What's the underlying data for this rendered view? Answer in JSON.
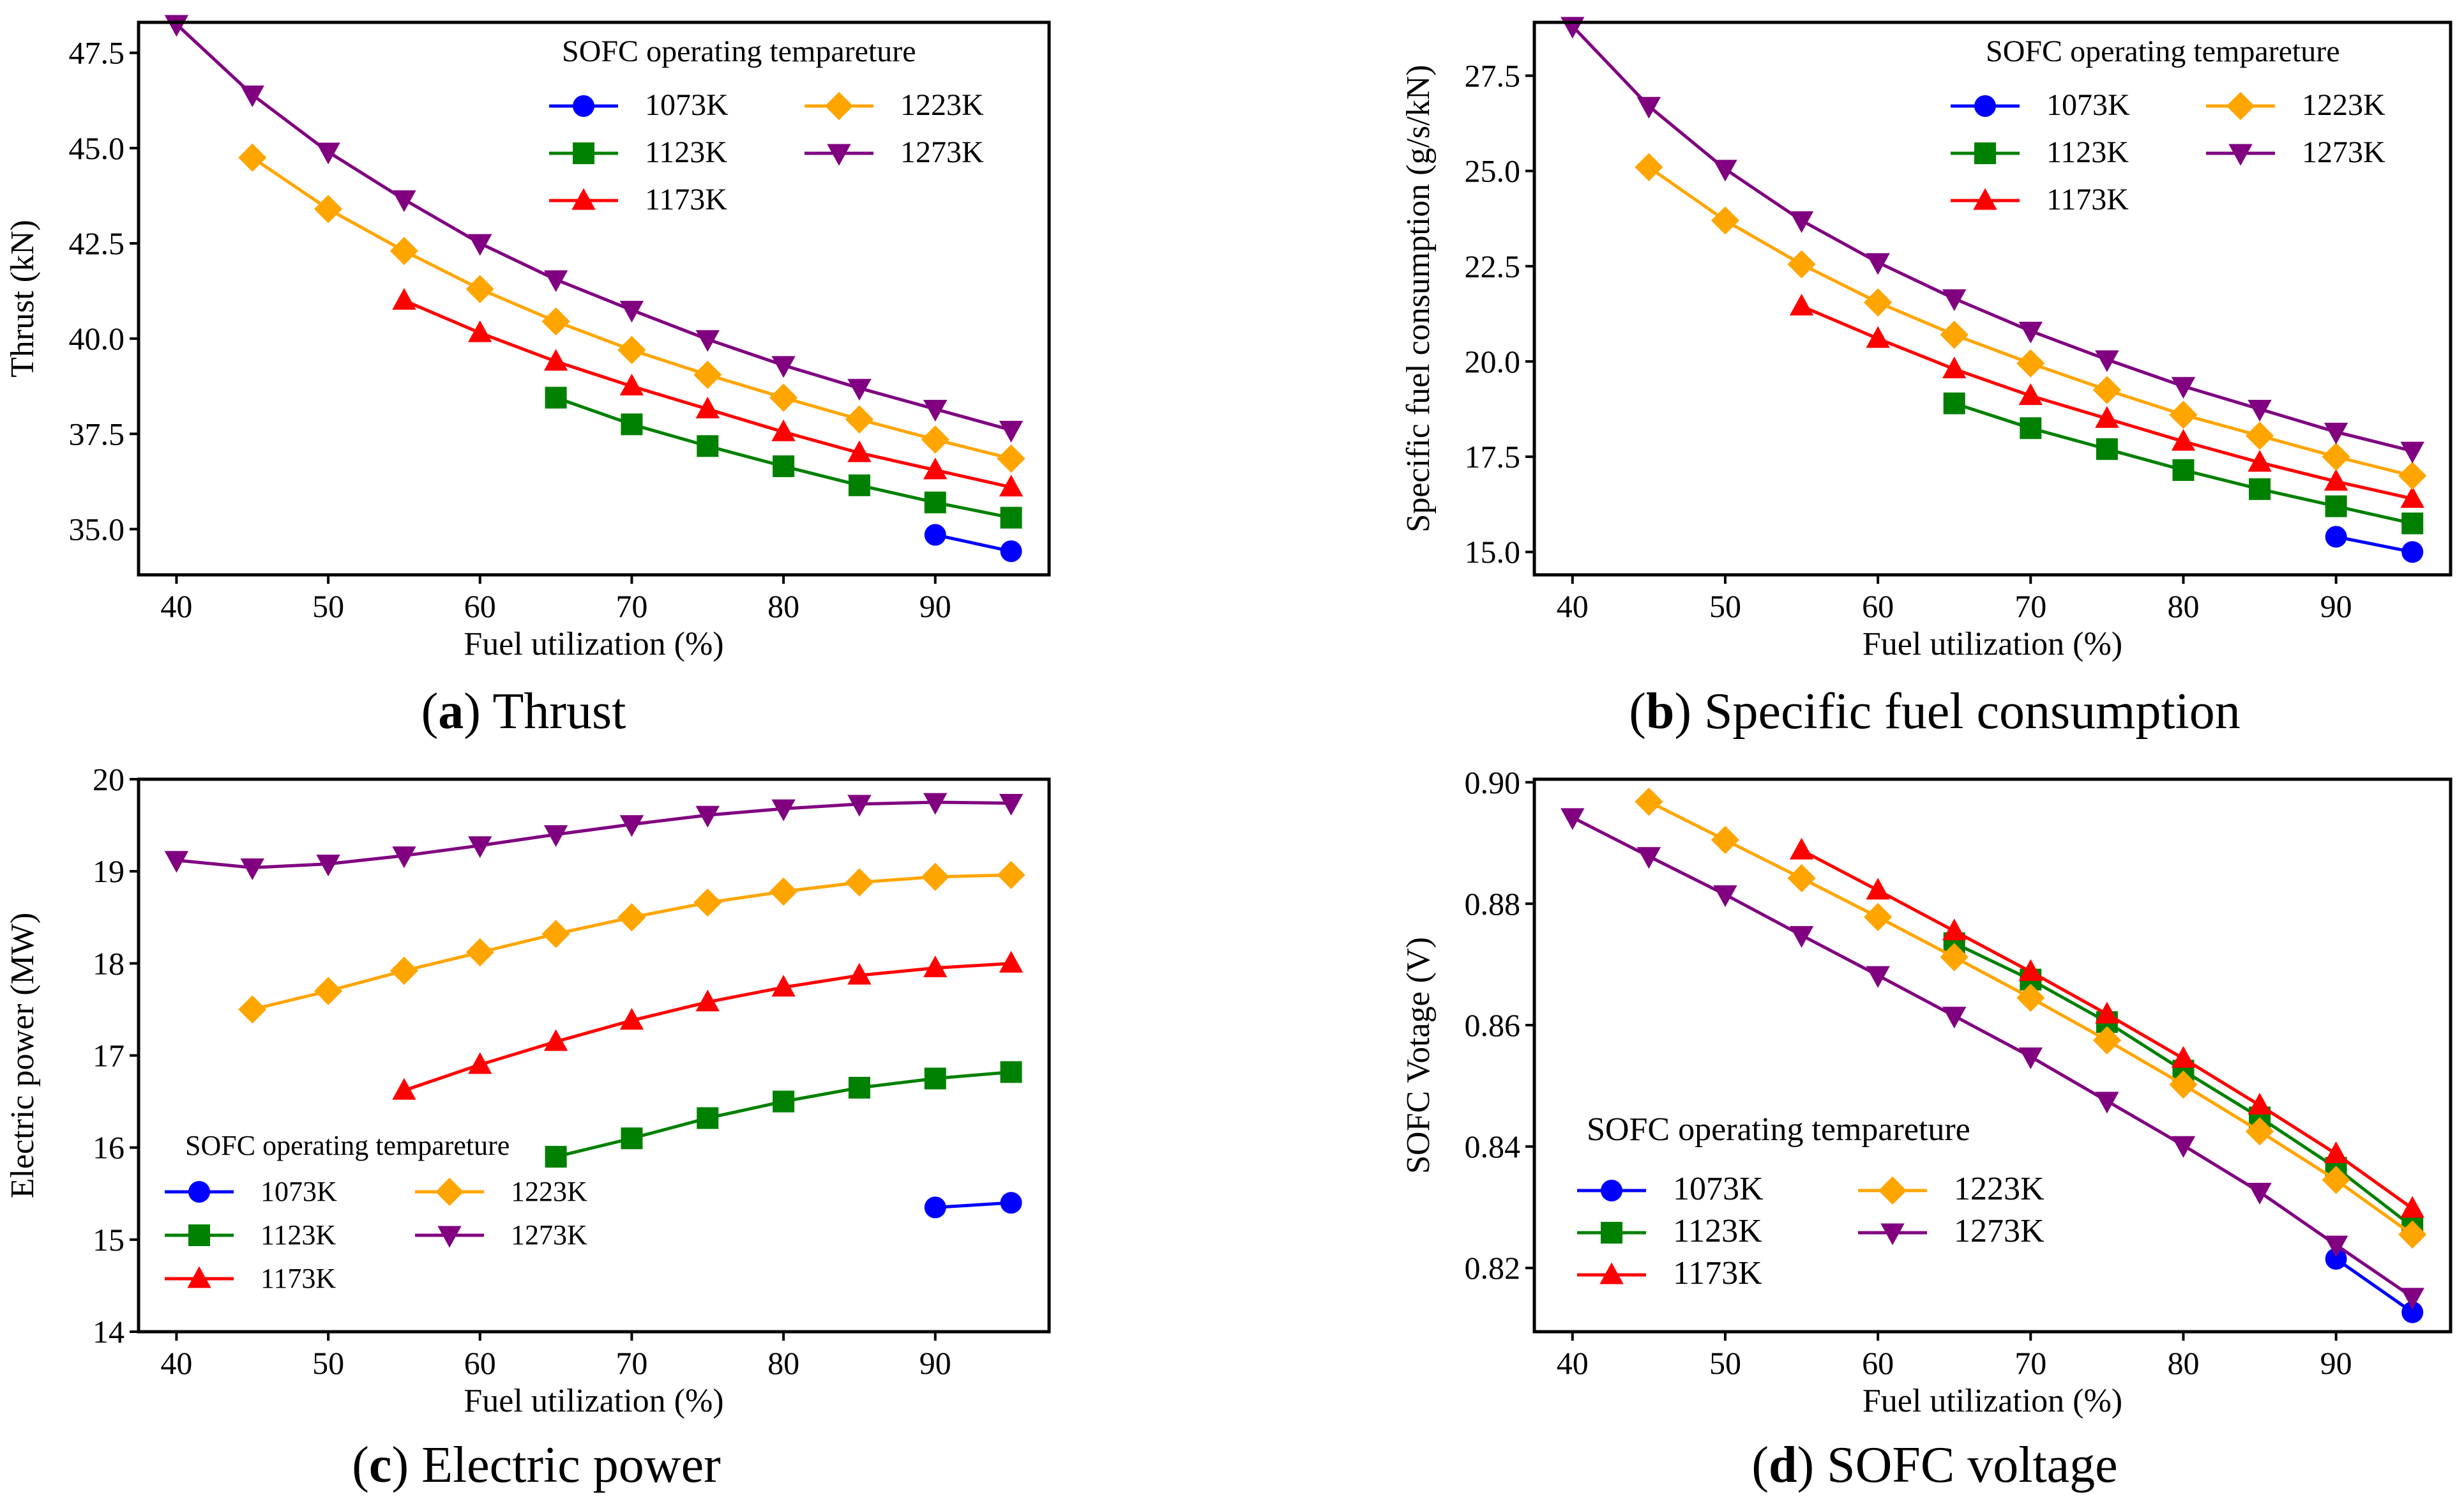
{
  "figure": {
    "panels": [
      {
        "letter": "a",
        "caption": "Thrust"
      },
      {
        "letter": "b",
        "caption": "Specific fuel consumption"
      },
      {
        "letter": "c",
        "caption": "Electric power"
      },
      {
        "letter": "d",
        "caption": "SOFC voltage"
      }
    ]
  },
  "colors": {
    "1073K": "#0000ff",
    "1123K": "#008000",
    "1173K": "#ff0000",
    "1223K": "#ffa500",
    "1273K": "#800080"
  },
  "chart_data": [
    {
      "type": "line",
      "title": "Thrust",
      "xlabel": "Fuel utilization (%)",
      "ylabel": "Thrust (kN)",
      "xlim": [
        37.5,
        97.5
      ],
      "ylim": [
        33.8,
        48.3
      ],
      "xticks": [
        40,
        50,
        60,
        70,
        80,
        90
      ],
      "xtick_labels": [
        "40",
        "50",
        "60",
        "70",
        "80",
        "90"
      ],
      "yticks": [
        35.0,
        37.5,
        40.0,
        42.5,
        45.0,
        47.5
      ],
      "ytick_labels": [
        "35.0",
        "37.5",
        "40.0",
        "42.5",
        "45.0",
        "47.5"
      ],
      "legend": {
        "title": "SOFC operating tempareture",
        "position": "top-right",
        "columns": [
          [
            "1073K",
            "1123K",
            "1173K"
          ],
          [
            "1223K",
            "1273K"
          ]
        ]
      },
      "series": [
        {
          "name": "1073K",
          "marker": "circle",
          "x": [
            90,
            95
          ],
          "values": [
            34.85,
            34.42
          ]
        },
        {
          "name": "1123K",
          "marker": "square",
          "x": [
            65,
            70,
            75,
            80,
            85,
            90,
            95
          ],
          "values": [
            38.45,
            37.75,
            37.18,
            36.65,
            36.15,
            35.7,
            35.3
          ]
        },
        {
          "name": "1173K",
          "marker": "triangle-up",
          "x": [
            55,
            60,
            65,
            70,
            75,
            80,
            85,
            90,
            95
          ],
          "values": [
            41.0,
            40.15,
            39.4,
            38.75,
            38.15,
            37.55,
            37.0,
            36.55,
            36.1
          ]
        },
        {
          "name": "1223K",
          "marker": "diamond",
          "x": [
            45,
            50,
            55,
            60,
            65,
            70,
            75,
            80,
            85,
            90,
            95
          ],
          "values": [
            44.75,
            43.4,
            42.3,
            41.3,
            40.45,
            39.7,
            39.05,
            38.45,
            37.88,
            37.35,
            36.85
          ]
        },
        {
          "name": "1273K",
          "marker": "triangle-down",
          "x": [
            40,
            45,
            50,
            55,
            60,
            65,
            70,
            75,
            80,
            85,
            90,
            95
          ],
          "values": [
            48.25,
            46.4,
            44.9,
            43.65,
            42.5,
            41.55,
            40.75,
            39.98,
            39.3,
            38.7,
            38.15,
            37.6
          ]
        }
      ]
    },
    {
      "type": "line",
      "title": "Specific fuel consumption",
      "xlabel": "Fuel utilization (%)",
      "ylabel": "Specific fuel consumption (g/s/kN)",
      "xlim": [
        37.5,
        97.5
      ],
      "ylim": [
        14.4,
        28.9
      ],
      "xticks": [
        40,
        50,
        60,
        70,
        80,
        90
      ],
      "xtick_labels": [
        "40",
        "50",
        "60",
        "70",
        "80",
        "90"
      ],
      "yticks": [
        15.0,
        17.5,
        20.0,
        22.5,
        25.0,
        27.5
      ],
      "ytick_labels": [
        "15.0",
        "17.5",
        "20.0",
        "22.5",
        "25.0",
        "27.5"
      ],
      "legend": {
        "title": "SOFC operating tempareture",
        "position": "top-right",
        "columns": [
          [
            "1073K",
            "1123K",
            "1173K"
          ],
          [
            "1223K",
            "1273K"
          ]
        ]
      },
      "series": [
        {
          "name": "1073K",
          "marker": "circle",
          "x": [
            90,
            95
          ],
          "values": [
            15.4,
            15.0
          ]
        },
        {
          "name": "1123K",
          "marker": "square",
          "x": [
            65,
            70,
            75,
            80,
            85,
            90,
            95
          ],
          "values": [
            18.9,
            18.25,
            17.7,
            17.15,
            16.65,
            16.2,
            15.75
          ]
        },
        {
          "name": "1173K",
          "marker": "triangle-up",
          "x": [
            55,
            60,
            65,
            70,
            75,
            80,
            85,
            90,
            95
          ],
          "values": [
            21.45,
            20.6,
            19.8,
            19.1,
            18.5,
            17.9,
            17.35,
            16.85,
            16.4
          ]
        },
        {
          "name": "1223K",
          "marker": "diamond",
          "x": [
            45,
            50,
            55,
            60,
            65,
            70,
            75,
            80,
            85,
            90,
            95
          ],
          "values": [
            25.1,
            23.7,
            22.55,
            21.55,
            20.7,
            19.95,
            19.25,
            18.6,
            18.05,
            17.5,
            17.0
          ]
        },
        {
          "name": "1273K",
          "marker": "triangle-down",
          "x": [
            40,
            45,
            50,
            55,
            60,
            65,
            70,
            75,
            80,
            85,
            90,
            95
          ],
          "values": [
            28.8,
            26.7,
            25.05,
            23.7,
            22.6,
            21.65,
            20.8,
            20.05,
            19.35,
            18.75,
            18.15,
            17.65
          ]
        }
      ]
    },
    {
      "type": "line",
      "title": "Electric power",
      "xlabel": "Fuel utilization (%)",
      "ylabel": "Electric power (MW)",
      "xlim": [
        37.5,
        97.5
      ],
      "ylim": [
        14.0,
        20.0
      ],
      "xticks": [
        40,
        50,
        60,
        70,
        80,
        90
      ],
      "xtick_labels": [
        "40",
        "50",
        "60",
        "70",
        "80",
        "90"
      ],
      "yticks": [
        14,
        15,
        16,
        17,
        18,
        19,
        20
      ],
      "ytick_labels": [
        "14",
        "15",
        "16",
        "17",
        "18",
        "19",
        "20"
      ],
      "legend": {
        "title": "SOFC operating tempareture",
        "position": "bottom-left",
        "columns": [
          [
            "1073K",
            "1123K",
            "1173K"
          ],
          [
            "1223K",
            "1273K"
          ]
        ]
      },
      "series": [
        {
          "name": "1073K",
          "marker": "circle",
          "x": [
            90,
            95
          ],
          "values": [
            15.35,
            15.4
          ]
        },
        {
          "name": "1123K",
          "marker": "square",
          "x": [
            65,
            70,
            75,
            80,
            85,
            90,
            95
          ],
          "values": [
            15.9,
            16.1,
            16.32,
            16.5,
            16.65,
            16.75,
            16.82
          ]
        },
        {
          "name": "1173K",
          "marker": "triangle-up",
          "x": [
            55,
            60,
            65,
            70,
            75,
            80,
            85,
            90,
            95
          ],
          "values": [
            16.62,
            16.9,
            17.15,
            17.38,
            17.58,
            17.74,
            17.87,
            17.95,
            18.0
          ]
        },
        {
          "name": "1223K",
          "marker": "diamond",
          "x": [
            45,
            50,
            55,
            60,
            65,
            70,
            75,
            80,
            85,
            90,
            95
          ],
          "values": [
            17.5,
            17.7,
            17.92,
            18.12,
            18.32,
            18.5,
            18.66,
            18.78,
            18.88,
            18.94,
            18.96
          ]
        },
        {
          "name": "1273K",
          "marker": "triangle-down",
          "x": [
            40,
            45,
            50,
            55,
            60,
            65,
            70,
            75,
            80,
            85,
            90,
            95
          ],
          "values": [
            19.12,
            19.04,
            19.08,
            19.17,
            19.28,
            19.4,
            19.51,
            19.61,
            19.68,
            19.73,
            19.75,
            19.74
          ]
        }
      ]
    },
    {
      "type": "line",
      "title": "SOFC voltage",
      "xlabel": "Fuel utilization (%)",
      "ylabel": "SOFC Votage (V)",
      "xlim": [
        37.5,
        97.5
      ],
      "ylim": [
        0.8095,
        0.9005
      ],
      "xticks": [
        40,
        50,
        60,
        70,
        80,
        90
      ],
      "xtick_labels": [
        "40",
        "50",
        "60",
        "70",
        "80",
        "90"
      ],
      "yticks": [
        0.82,
        0.84,
        0.86,
        0.88,
        0.9
      ],
      "ytick_labels": [
        "0.82",
        "0.84",
        "0.86",
        "0.88",
        "0.90"
      ],
      "legend": {
        "title": "SOFC operating tempareture",
        "position": "bottom-left",
        "columns": [
          [
            "1073K",
            "1123K",
            "1173K"
          ],
          [
            "1223K",
            "1273K"
          ]
        ]
      },
      "series": [
        {
          "name": "1073K",
          "marker": "circle",
          "x": [
            90,
            95
          ],
          "values": [
            0.8215,
            0.8127
          ]
        },
        {
          "name": "1123K",
          "marker": "square",
          "x": [
            65,
            70,
            75,
            80,
            85,
            90,
            95
          ],
          "values": [
            0.8735,
            0.8675,
            0.8605,
            0.8525,
            0.8448,
            0.8365,
            0.8268
          ]
        },
        {
          "name": "1173K",
          "marker": "triangle-up",
          "x": [
            55,
            60,
            65,
            70,
            75,
            80,
            85,
            90,
            95
          ],
          "values": [
            0.8888,
            0.8822,
            0.8755,
            0.8688,
            0.8618,
            0.8545,
            0.8468,
            0.8388,
            0.8298
          ]
        },
        {
          "name": "1223K",
          "marker": "diamond",
          "x": [
            45,
            50,
            55,
            60,
            65,
            70,
            75,
            80,
            85,
            90,
            95
          ],
          "values": [
            0.8968,
            0.8905,
            0.8842,
            0.8778,
            0.8712,
            0.8645,
            0.8575,
            0.8502,
            0.8425,
            0.8345,
            0.8255
          ]
        },
        {
          "name": "1273K",
          "marker": "triangle-down",
          "x": [
            40,
            45,
            50,
            55,
            60,
            65,
            70,
            75,
            80,
            85,
            90,
            95
          ],
          "values": [
            0.8942,
            0.8878,
            0.8815,
            0.8748,
            0.8682,
            0.8615,
            0.8548,
            0.8475,
            0.8402,
            0.8325,
            0.8238,
            0.8152
          ]
        }
      ]
    }
  ]
}
